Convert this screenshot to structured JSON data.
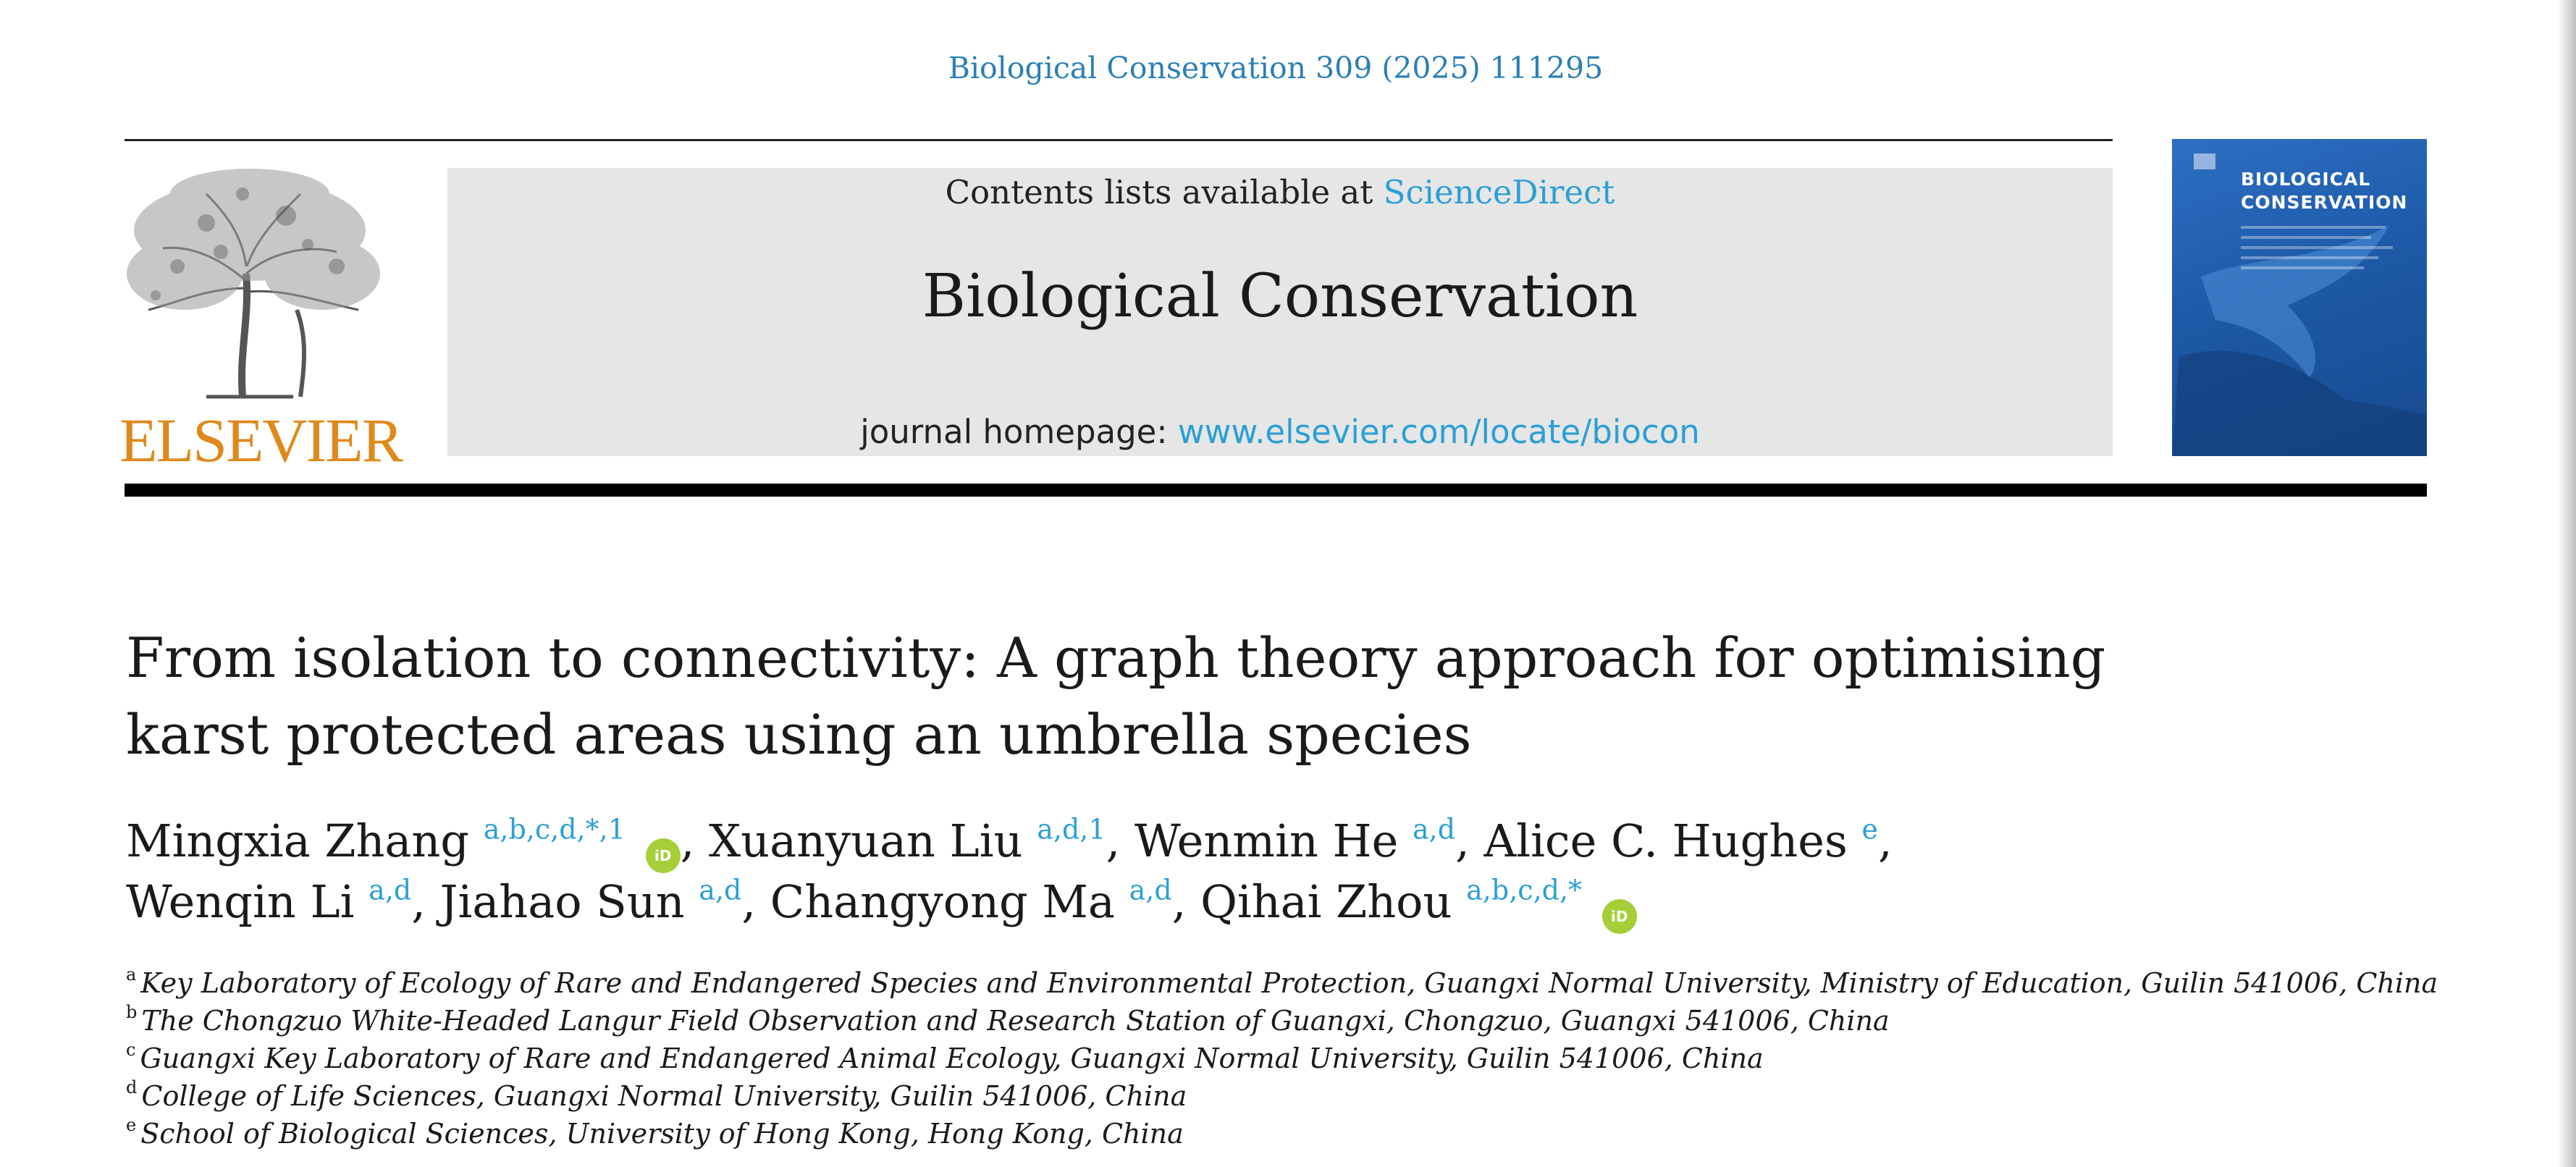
{
  "journal_reference": "Biological Conservation 309 (2025) 111295",
  "publisher": {
    "name": "ELSEVIER"
  },
  "banner": {
    "contents_prefix": "Contents lists available at ",
    "contents_link": "ScienceDirect",
    "journal_name": "Biological Conservation",
    "homepage_prefix": "journal homepage: ",
    "homepage_link": "www.elsevier.com/locate/biocon"
  },
  "cover": {
    "title_line1": "BIOLOGICAL",
    "title_line2": "CONSERVATION"
  },
  "article": {
    "title_line1": "From isolation to connectivity: A graph theory approach for optimising",
    "title_line2": "karst protected areas using an umbrella species"
  },
  "authors": [
    {
      "name": "Mingxia Zhang",
      "sup": "a,b,c,d,*,1",
      "orcid": true,
      "sep": ", "
    },
    {
      "name": "Xuanyuan Liu",
      "sup": "a,d,1",
      "orcid": false,
      "sep": ", "
    },
    {
      "name": "Wenmin He",
      "sup": "a,d",
      "orcid": false,
      "sep": ", "
    },
    {
      "name": "Alice C. Hughes",
      "sup": "e",
      "orcid": false,
      "sep": ","
    },
    {
      "name": "Wenqin Li",
      "sup": "a,d",
      "orcid": false,
      "sep": ", "
    },
    {
      "name": "Jiahao Sun",
      "sup": "a,d",
      "orcid": false,
      "sep": ", "
    },
    {
      "name": "Changyong Ma",
      "sup": "a,d",
      "orcid": false,
      "sep": ", "
    },
    {
      "name": "Qihai Zhou",
      "sup": "a,b,c,d,*",
      "orcid": true,
      "sep": ""
    }
  ],
  "orcid_label": "iD",
  "affiliations": [
    {
      "marker": "a",
      "text": "Key Laboratory of Ecology of Rare and Endangered Species and Environmental Protection, Guangxi Normal University, Ministry of Education, Guilin 541006, China"
    },
    {
      "marker": "b",
      "text": "The Chongzuo White-Headed Langur Field Observation and Research Station of Guangxi, Chongzuo, Guangxi 541006, China"
    },
    {
      "marker": "c",
      "text": "Guangxi Key Laboratory of Rare and Endangered Animal Ecology, Guangxi Normal University, Guilin 541006, China"
    },
    {
      "marker": "d",
      "text": "College of Life Sciences, Guangxi Normal University, Guilin 541006, China"
    },
    {
      "marker": "e",
      "text": "School of Biological Sciences, University of Hong Kong, Hong Kong, China"
    }
  ],
  "colors": {
    "link": "#2a9fd6",
    "journal_ref": "#2a7fb5",
    "publisher": "#e0891b",
    "cover": "#1e5aa8",
    "orcid": "#a6ce39"
  }
}
